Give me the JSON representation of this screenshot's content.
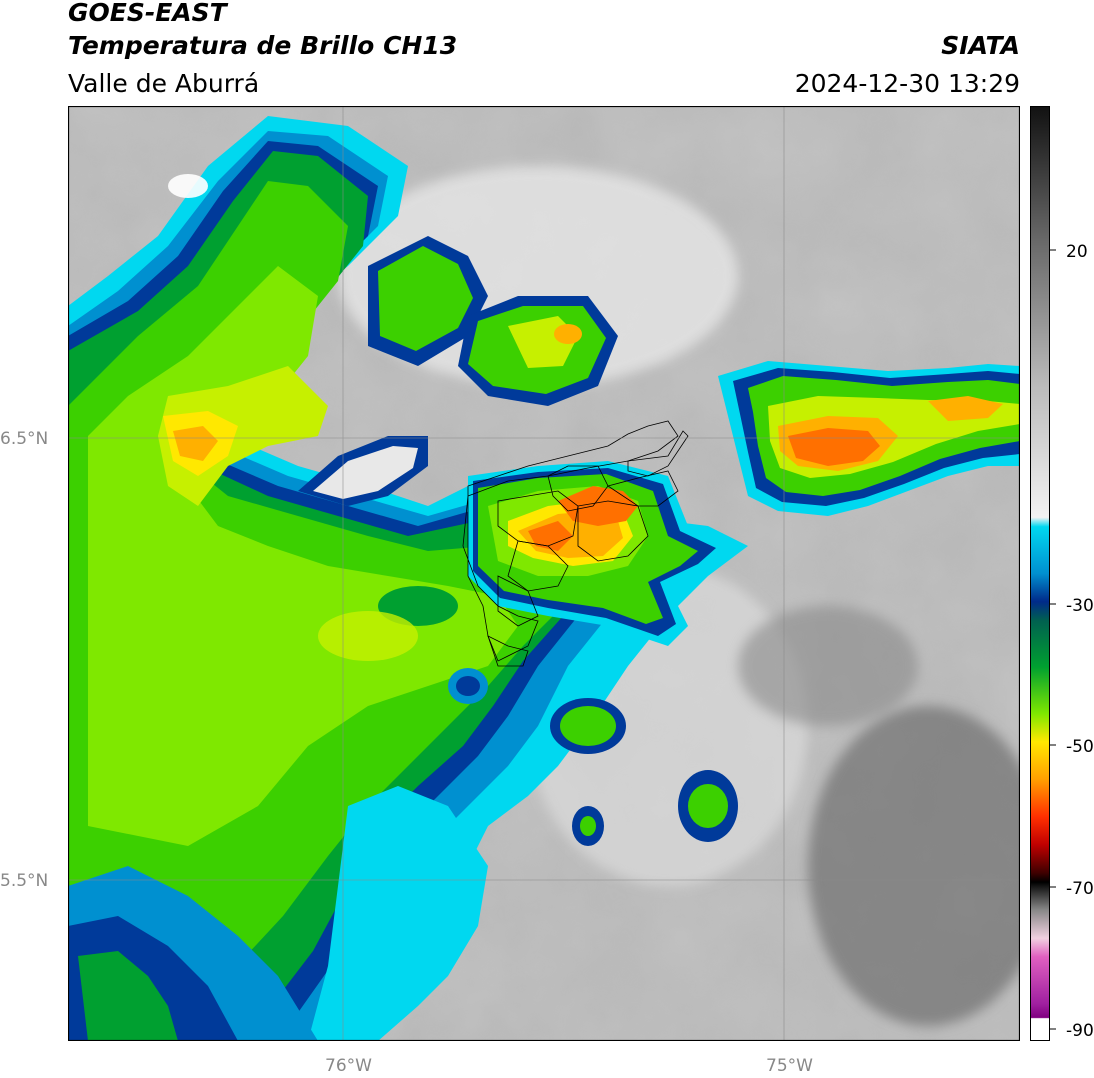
{
  "header": {
    "satellite": "GOES-EAST",
    "product": "Temperatura de Brillo CH13",
    "region": "Valle de Aburrá",
    "agency": "SIATA",
    "datetime": "2024-12-30 13:29"
  },
  "map": {
    "lat_labels": [
      "6.5°N",
      "5.5°N"
    ],
    "lon_labels": [
      "76°W",
      "75°W"
    ]
  },
  "colorbar": {
    "ticks": [
      "20",
      "-30",
      "-50",
      "-70",
      "-90"
    ]
  }
}
